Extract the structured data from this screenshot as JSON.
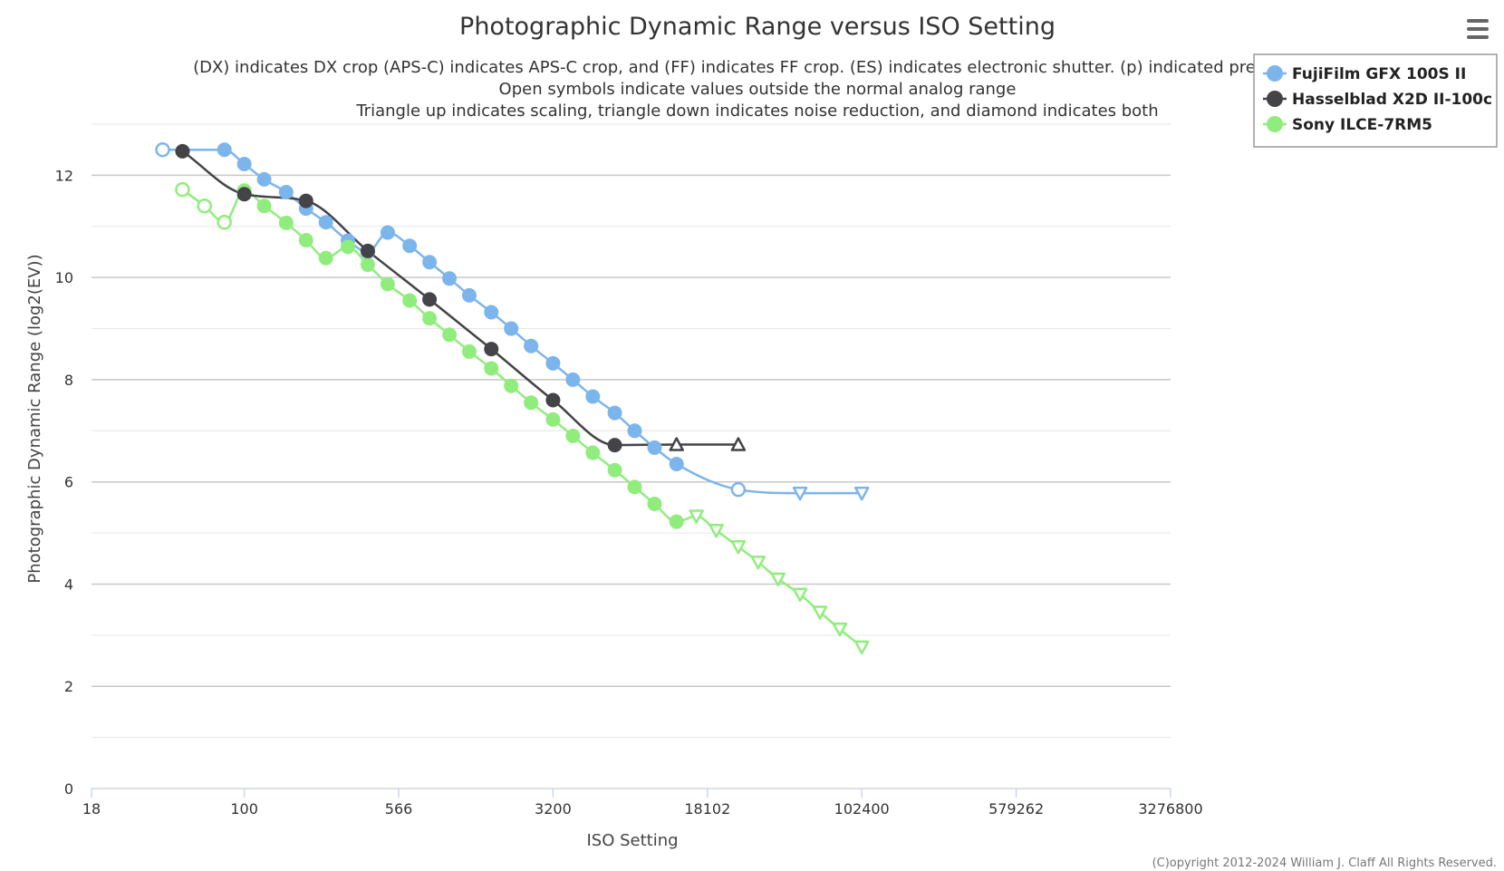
{
  "chart_data": {
    "type": "line",
    "title": "Photographic Dynamic Range versus ISO Setting",
    "subtitle": [
      "(DX) indicates DX crop (APS-C) indicates APS-C crop, and (FF) indicates FF crop. (ES) indicates electronic shutter. (p) indicated preliminary",
      "Open symbols indicate values outside the normal analog range",
      "Triangle up indicates scaling, triangle down indicates noise reduction, and diamond indicates both"
    ],
    "xlabel": "ISO Setting",
    "ylabel": "Photographic Dynamic Range (log2(EV))",
    "x_scale": "log",
    "xlim": [
      18,
      3276800
    ],
    "ylim": [
      0,
      13
    ],
    "x_ticks": [
      "18",
      "100",
      "566",
      "3200",
      "18102",
      "102400",
      "579262",
      "3276800"
    ],
    "y_ticks": [
      "0",
      "2",
      "4",
      "6",
      "8",
      "10",
      "12"
    ],
    "grid": true,
    "legend_position": "top-right",
    "copyright": "(C)opyright 2012-2024 William J. Claff All Rights Reserved.",
    "series": [
      {
        "name": "FujiFilm GFX 100S II",
        "color": "#7cb5ec",
        "points": [
          {
            "iso": 40,
            "dr": 12.5,
            "sym": "circle-open"
          },
          {
            "iso": 80,
            "dr": 12.5,
            "sym": "circle"
          },
          {
            "iso": 100,
            "dr": 12.22,
            "sym": "circle"
          },
          {
            "iso": 125,
            "dr": 11.92,
            "sym": "circle"
          },
          {
            "iso": 160,
            "dr": 11.67,
            "sym": "circle"
          },
          {
            "iso": 200,
            "dr": 11.35,
            "sym": "circle"
          },
          {
            "iso": 250,
            "dr": 11.08,
            "sym": "circle"
          },
          {
            "iso": 320,
            "dr": 10.72,
            "sym": "circle"
          },
          {
            "iso": 400,
            "dr": 10.5,
            "sym": "circle"
          },
          {
            "iso": 500,
            "dr": 10.88,
            "sym": "circle"
          },
          {
            "iso": 640,
            "dr": 10.62,
            "sym": "circle"
          },
          {
            "iso": 800,
            "dr": 10.3,
            "sym": "circle"
          },
          {
            "iso": 1000,
            "dr": 9.98,
            "sym": "circle"
          },
          {
            "iso": 1250,
            "dr": 9.65,
            "sym": "circle"
          },
          {
            "iso": 1600,
            "dr": 9.32,
            "sym": "circle"
          },
          {
            "iso": 2000,
            "dr": 9.0,
            "sym": "circle"
          },
          {
            "iso": 2500,
            "dr": 8.66,
            "sym": "circle"
          },
          {
            "iso": 3200,
            "dr": 8.32,
            "sym": "circle"
          },
          {
            "iso": 4000,
            "dr": 8.0,
            "sym": "circle"
          },
          {
            "iso": 5000,
            "dr": 7.67,
            "sym": "circle"
          },
          {
            "iso": 6400,
            "dr": 7.35,
            "sym": "circle"
          },
          {
            "iso": 8000,
            "dr": 7.0,
            "sym": "circle"
          },
          {
            "iso": 10000,
            "dr": 6.67,
            "sym": "circle"
          },
          {
            "iso": 12800,
            "dr": 6.35,
            "sym": "circle"
          },
          {
            "iso": 25600,
            "dr": 5.85,
            "sym": "circle-open"
          },
          {
            "iso": 51200,
            "dr": 5.78,
            "sym": "triangle-down"
          },
          {
            "iso": 102400,
            "dr": 5.78,
            "sym": "triangle-down"
          }
        ]
      },
      {
        "name": "Hasselblad X2D II-100c",
        "color": "#434348",
        "points": [
          {
            "iso": 50,
            "dr": 12.47,
            "sym": "circle"
          },
          {
            "iso": 100,
            "dr": 11.63,
            "sym": "circle"
          },
          {
            "iso": 200,
            "dr": 11.5,
            "sym": "circle"
          },
          {
            "iso": 400,
            "dr": 10.52,
            "sym": "circle"
          },
          {
            "iso": 800,
            "dr": 9.57,
            "sym": "circle"
          },
          {
            "iso": 1600,
            "dr": 8.6,
            "sym": "circle"
          },
          {
            "iso": 3200,
            "dr": 7.6,
            "sym": "circle"
          },
          {
            "iso": 6400,
            "dr": 6.72,
            "sym": "circle"
          },
          {
            "iso": 12800,
            "dr": 6.73,
            "sym": "triangle-up"
          },
          {
            "iso": 25600,
            "dr": 6.73,
            "sym": "triangle-up"
          }
        ]
      },
      {
        "name": "Sony ILCE-7RM5",
        "color": "#90ed7d",
        "points": [
          {
            "iso": 50,
            "dr": 11.72,
            "sym": "circle-open"
          },
          {
            "iso": 64,
            "dr": 11.4,
            "sym": "circle-open"
          },
          {
            "iso": 80,
            "dr": 11.08,
            "sym": "circle-open"
          },
          {
            "iso": 100,
            "dr": 11.7,
            "sym": "circle"
          },
          {
            "iso": 125,
            "dr": 11.4,
            "sym": "circle"
          },
          {
            "iso": 160,
            "dr": 11.07,
            "sym": "circle"
          },
          {
            "iso": 200,
            "dr": 10.73,
            "sym": "circle"
          },
          {
            "iso": 250,
            "dr": 10.38,
            "sym": "circle"
          },
          {
            "iso": 320,
            "dr": 10.6,
            "sym": "circle"
          },
          {
            "iso": 400,
            "dr": 10.25,
            "sym": "circle"
          },
          {
            "iso": 500,
            "dr": 9.87,
            "sym": "circle"
          },
          {
            "iso": 640,
            "dr": 9.55,
            "sym": "circle"
          },
          {
            "iso": 800,
            "dr": 9.2,
            "sym": "circle"
          },
          {
            "iso": 1000,
            "dr": 8.88,
            "sym": "circle"
          },
          {
            "iso": 1250,
            "dr": 8.55,
            "sym": "circle"
          },
          {
            "iso": 1600,
            "dr": 8.22,
            "sym": "circle"
          },
          {
            "iso": 2000,
            "dr": 7.88,
            "sym": "circle"
          },
          {
            "iso": 2500,
            "dr": 7.55,
            "sym": "circle"
          },
          {
            "iso": 3200,
            "dr": 7.22,
            "sym": "circle"
          },
          {
            "iso": 4000,
            "dr": 6.9,
            "sym": "circle"
          },
          {
            "iso": 5000,
            "dr": 6.57,
            "sym": "circle"
          },
          {
            "iso": 6400,
            "dr": 6.23,
            "sym": "circle"
          },
          {
            "iso": 8000,
            "dr": 5.9,
            "sym": "circle"
          },
          {
            "iso": 10000,
            "dr": 5.57,
            "sym": "circle"
          },
          {
            "iso": 12800,
            "dr": 5.22,
            "sym": "circle"
          },
          {
            "iso": 16000,
            "dr": 5.33,
            "sym": "triangle-down"
          },
          {
            "iso": 20000,
            "dr": 5.05,
            "sym": "triangle-down"
          },
          {
            "iso": 25600,
            "dr": 4.73,
            "sym": "triangle-down"
          },
          {
            "iso": 32000,
            "dr": 4.43,
            "sym": "triangle-down"
          },
          {
            "iso": 40000,
            "dr": 4.1,
            "sym": "triangle-down"
          },
          {
            "iso": 51200,
            "dr": 3.8,
            "sym": "triangle-down"
          },
          {
            "iso": 64000,
            "dr": 3.45,
            "sym": "triangle-down"
          },
          {
            "iso": 80000,
            "dr": 3.12,
            "sym": "triangle-down"
          },
          {
            "iso": 102400,
            "dr": 2.77,
            "sym": "triangle-down"
          }
        ]
      }
    ]
  }
}
